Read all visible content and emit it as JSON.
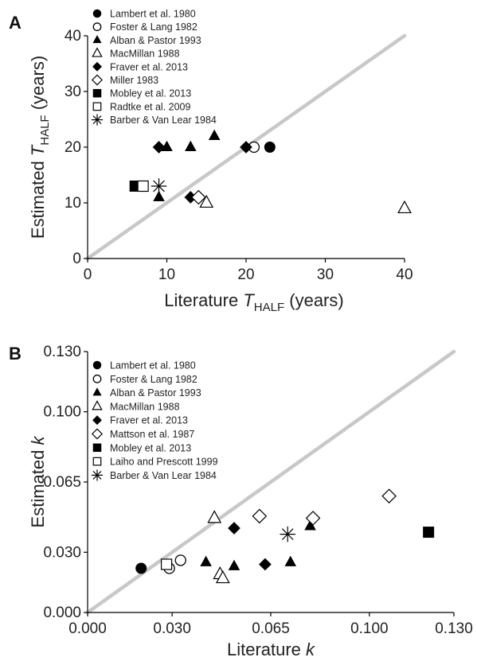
{
  "chart_data": [
    {
      "type": "scatter",
      "panel": "A",
      "title": "",
      "xlabel": {
        "pre": "Literature ",
        "sym": "T",
        "sub": "HALF",
        "post": " (years)"
      },
      "ylabel": {
        "pre": "Estimated ",
        "sym": "T",
        "sub": "HALF",
        "post": " (years)"
      },
      "xlim": [
        0,
        40
      ],
      "ylim": [
        0,
        40
      ],
      "xticks": [
        0,
        10,
        20,
        30,
        40
      ],
      "yticks": [
        0,
        10,
        20,
        30,
        40
      ],
      "xtick_labels": [
        "0",
        "10",
        "20",
        "30",
        "40"
      ],
      "ytick_labels": [
        "0",
        "10",
        "20",
        "30",
        "40"
      ],
      "one_to_one_line": true,
      "legend_position": "top-left",
      "series": [
        {
          "name": "Lambert et al. 1980",
          "marker": "circle-filled",
          "points": [
            [
              23,
              20
            ]
          ]
        },
        {
          "name": "Foster & Lang 1982",
          "marker": "circle-open",
          "points": [
            [
              21,
              20
            ]
          ]
        },
        {
          "name": "Alban & Pastor 1993",
          "marker": "triangle-filled",
          "points": [
            [
              10,
              20
            ],
            [
              13,
              20
            ],
            [
              16,
              22
            ],
            [
              9,
              11
            ]
          ]
        },
        {
          "name": "MacMillan 1988",
          "marker": "triangle-open",
          "points": [
            [
              15,
              10
            ],
            [
              40,
              9
            ]
          ]
        },
        {
          "name": "Fraver et al. 2013",
          "marker": "diamond-filled",
          "points": [
            [
              9,
              20
            ],
            [
              20,
              20
            ],
            [
              13,
              11
            ]
          ]
        },
        {
          "name": "Miller 1983",
          "marker": "diamond-open",
          "points": [
            [
              14,
              11
            ]
          ]
        },
        {
          "name": "Mobley et al. 2013",
          "marker": "square-filled",
          "points": [
            [
              6,
              13
            ]
          ]
        },
        {
          "name": "Radtke et al. 2009",
          "marker": "square-open",
          "points": [
            [
              7,
              13
            ]
          ]
        },
        {
          "name": "Barber & Van Lear 1984",
          "marker": "asterisk",
          "points": [
            [
              9,
              13
            ]
          ]
        }
      ]
    },
    {
      "type": "scatter",
      "panel": "B",
      "title": "",
      "xlabel": {
        "pre": "Literature ",
        "sym": "k",
        "sub": "",
        "post": ""
      },
      "ylabel": {
        "pre": "Estimated ",
        "sym": "k",
        "sub": "",
        "post": ""
      },
      "xlim": [
        0,
        0.13
      ],
      "ylim": [
        0,
        0.13
      ],
      "xticks": [
        0,
        0.03,
        0.065,
        0.1,
        0.13
      ],
      "yticks": [
        0,
        0.03,
        0.065,
        0.1,
        0.13
      ],
      "xtick_labels": [
        "0.000",
        "0.030",
        "0.065",
        "0.100",
        "0.130"
      ],
      "ytick_labels": [
        "0.000",
        "0.030",
        "0.065",
        "0.100",
        "0.130"
      ],
      "one_to_one_line": true,
      "legend_position": "top-left",
      "series": [
        {
          "name": "Lambert et al. 1980",
          "marker": "circle-filled",
          "points": [
            [
              0.019,
              0.022
            ]
          ]
        },
        {
          "name": "Foster & Lang 1982",
          "marker": "circle-open",
          "points": [
            [
              0.029,
              0.022
            ],
            [
              0.033,
              0.026
            ]
          ]
        },
        {
          "name": "Alban & Pastor 1993",
          "marker": "triangle-filled",
          "points": [
            [
              0.042,
              0.025
            ],
            [
              0.052,
              0.023
            ],
            [
              0.072,
              0.025
            ],
            [
              0.079,
              0.043
            ]
          ]
        },
        {
          "name": "MacMillan 1988",
          "marker": "triangle-open",
          "points": [
            [
              0.045,
              0.047
            ],
            [
              0.047,
              0.019
            ],
            [
              0.048,
              0.017
            ]
          ]
        },
        {
          "name": "Fraver et al. 2013",
          "marker": "diamond-filled",
          "points": [
            [
              0.052,
              0.042
            ],
            [
              0.063,
              0.024
            ]
          ]
        },
        {
          "name": "Mattson et al. 1987",
          "marker": "diamond-open",
          "points": [
            [
              0.061,
              0.048
            ],
            [
              0.08,
              0.047
            ],
            [
              0.107,
              0.058
            ]
          ]
        },
        {
          "name": "Mobley et al. 2013",
          "marker": "square-filled",
          "points": [
            [
              0.121,
              0.04
            ]
          ]
        },
        {
          "name": "Laiho and Prescott 1999",
          "marker": "square-open",
          "points": [
            [
              0.028,
              0.024
            ]
          ]
        },
        {
          "name": "Barber & Van Lear 1984",
          "marker": "asterisk",
          "points": [
            [
              0.071,
              0.039
            ]
          ]
        }
      ]
    }
  ]
}
